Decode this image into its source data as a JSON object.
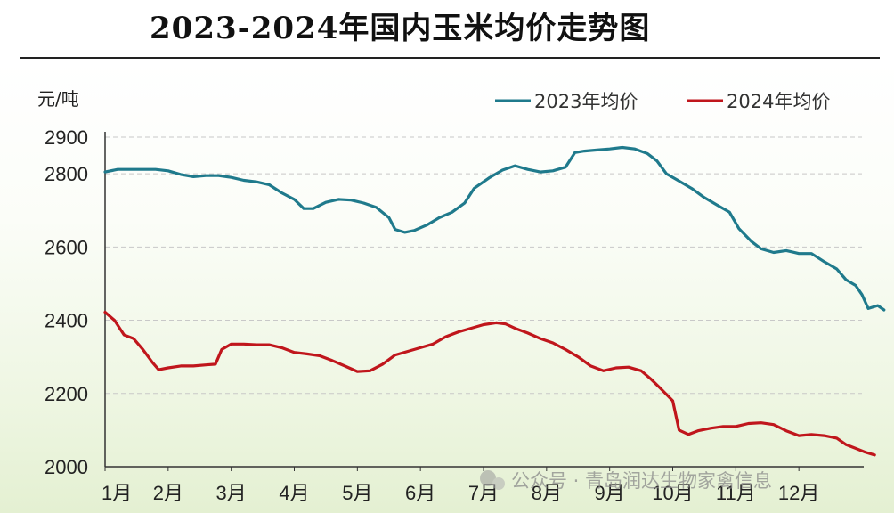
{
  "header": {
    "title": "2023-2024年国内玉米均价走势图"
  },
  "watermark": "公众号 · 青岛润达生物家禽信息",
  "colors": {
    "series_2023": "#1f7a8c",
    "series_2024": "#c0161c",
    "grid": "#c8c8c8",
    "text": "#222222"
  },
  "chart_data": {
    "type": "line",
    "title": "2023-2024年国内玉米均价走势图",
    "ylabel": "元/吨",
    "xlabel": "",
    "ylim": [
      2000,
      2900
    ],
    "xlim": [
      1,
      13
    ],
    "yticks": [
      2000,
      2200,
      2400,
      2600,
      2800,
      2900
    ],
    "xtick_labels": [
      "1月",
      "2月",
      "3月",
      "4月",
      "5月",
      "6月",
      "7月",
      "8月",
      "9月",
      "10月",
      "11月",
      "12月"
    ],
    "grid": "horizontal dashed",
    "legend": "top-right",
    "series": [
      {
        "name": "2023年均价",
        "color": "#1f7a8c",
        "points": [
          [
            1.0,
            2805
          ],
          [
            1.2,
            2812
          ],
          [
            1.5,
            2812
          ],
          [
            1.8,
            2812
          ],
          [
            2.0,
            2808
          ],
          [
            2.2,
            2798
          ],
          [
            2.4,
            2792
          ],
          [
            2.6,
            2795
          ],
          [
            2.8,
            2795
          ],
          [
            3.0,
            2790
          ],
          [
            3.2,
            2782
          ],
          [
            3.4,
            2778
          ],
          [
            3.6,
            2770
          ],
          [
            3.8,
            2748
          ],
          [
            4.0,
            2730
          ],
          [
            4.15,
            2705
          ],
          [
            4.3,
            2705
          ],
          [
            4.5,
            2722
          ],
          [
            4.7,
            2730
          ],
          [
            4.9,
            2728
          ],
          [
            5.1,
            2720
          ],
          [
            5.3,
            2708
          ],
          [
            5.5,
            2680
          ],
          [
            5.6,
            2648
          ],
          [
            5.75,
            2640
          ],
          [
            5.9,
            2645
          ],
          [
            6.1,
            2660
          ],
          [
            6.3,
            2680
          ],
          [
            6.5,
            2695
          ],
          [
            6.7,
            2720
          ],
          [
            6.85,
            2760
          ],
          [
            7.1,
            2790
          ],
          [
            7.3,
            2810
          ],
          [
            7.5,
            2822
          ],
          [
            7.7,
            2812
          ],
          [
            7.9,
            2805
          ],
          [
            8.1,
            2808
          ],
          [
            8.3,
            2818
          ],
          [
            8.45,
            2858
          ],
          [
            8.6,
            2862
          ],
          [
            8.8,
            2865
          ],
          [
            9.0,
            2868
          ],
          [
            9.2,
            2872
          ],
          [
            9.4,
            2868
          ],
          [
            9.6,
            2855
          ],
          [
            9.75,
            2835
          ],
          [
            9.9,
            2800
          ],
          [
            10.1,
            2780
          ],
          [
            10.3,
            2760
          ],
          [
            10.5,
            2735
          ],
          [
            10.7,
            2715
          ],
          [
            10.9,
            2695
          ],
          [
            11.05,
            2650
          ],
          [
            11.25,
            2615
          ],
          [
            11.4,
            2595
          ],
          [
            11.6,
            2585
          ],
          [
            11.8,
            2590
          ],
          [
            12.0,
            2582
          ],
          [
            12.2,
            2582
          ],
          [
            12.4,
            2560
          ],
          [
            12.6,
            2540
          ],
          [
            12.75,
            2510
          ],
          [
            12.9,
            2495
          ],
          [
            13.0,
            2470
          ],
          [
            13.1,
            2432
          ],
          [
            13.25,
            2440
          ],
          [
            13.35,
            2428
          ]
        ]
      },
      {
        "name": "2024年均价",
        "color": "#c0161c",
        "points": [
          [
            1.0,
            2422
          ],
          [
            1.15,
            2400
          ],
          [
            1.3,
            2360
          ],
          [
            1.45,
            2350
          ],
          [
            1.6,
            2320
          ],
          [
            1.75,
            2285
          ],
          [
            1.85,
            2265
          ],
          [
            2.0,
            2270
          ],
          [
            2.2,
            2275
          ],
          [
            2.4,
            2275
          ],
          [
            2.6,
            2278
          ],
          [
            2.75,
            2280
          ],
          [
            2.85,
            2320
          ],
          [
            3.0,
            2335
          ],
          [
            3.2,
            2335
          ],
          [
            3.4,
            2333
          ],
          [
            3.6,
            2333
          ],
          [
            3.8,
            2325
          ],
          [
            4.0,
            2312
          ],
          [
            4.2,
            2308
          ],
          [
            4.4,
            2303
          ],
          [
            4.6,
            2290
          ],
          [
            4.8,
            2275
          ],
          [
            5.0,
            2260
          ],
          [
            5.2,
            2262
          ],
          [
            5.4,
            2280
          ],
          [
            5.6,
            2305
          ],
          [
            5.8,
            2315
          ],
          [
            6.0,
            2325
          ],
          [
            6.2,
            2335
          ],
          [
            6.4,
            2355
          ],
          [
            6.6,
            2368
          ],
          [
            6.8,
            2378
          ],
          [
            7.0,
            2388
          ],
          [
            7.2,
            2393
          ],
          [
            7.35,
            2390
          ],
          [
            7.5,
            2378
          ],
          [
            7.7,
            2365
          ],
          [
            7.9,
            2350
          ],
          [
            8.1,
            2338
          ],
          [
            8.3,
            2320
          ],
          [
            8.5,
            2300
          ],
          [
            8.7,
            2275
          ],
          [
            8.9,
            2262
          ],
          [
            9.1,
            2270
          ],
          [
            9.3,
            2272
          ],
          [
            9.5,
            2262
          ],
          [
            9.65,
            2240
          ],
          [
            9.8,
            2215
          ],
          [
            10.0,
            2180
          ],
          [
            10.1,
            2100
          ],
          [
            10.25,
            2088
          ],
          [
            10.4,
            2098
          ],
          [
            10.6,
            2105
          ],
          [
            10.8,
            2110
          ],
          [
            11.0,
            2110
          ],
          [
            11.2,
            2118
          ],
          [
            11.4,
            2120
          ],
          [
            11.6,
            2115
          ],
          [
            11.8,
            2098
          ],
          [
            12.0,
            2085
          ],
          [
            12.2,
            2088
          ],
          [
            12.4,
            2085
          ],
          [
            12.6,
            2078
          ],
          [
            12.75,
            2060
          ],
          [
            12.9,
            2050
          ],
          [
            13.05,
            2040
          ],
          [
            13.2,
            2032
          ]
        ]
      }
    ]
  }
}
